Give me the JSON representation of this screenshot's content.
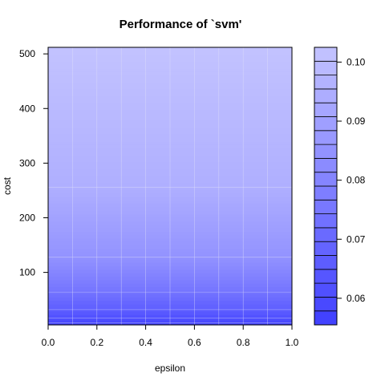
{
  "chart_data": {
    "type": "heatmap",
    "title": "Performance of `svm'",
    "xlabel": "epsilon",
    "ylabel": "cost",
    "xlim": [
      0,
      1
    ],
    "ylim": [
      4,
      512
    ],
    "x_ticks": [
      "0.0",
      "0.2",
      "0.4",
      "0.6",
      "0.8",
      "1.0"
    ],
    "x_tick_values": [
      0,
      0.2,
      0.4,
      0.6,
      0.8,
      1.0
    ],
    "y_ticks": [
      "100",
      "200",
      "300",
      "400",
      "500"
    ],
    "y_tick_values": [
      100,
      200,
      300,
      400,
      500
    ],
    "x_grid": [
      0,
      0.1,
      0.2,
      0.3,
      0.4,
      0.5,
      0.6,
      0.7,
      0.8,
      0.9,
      1.0
    ],
    "y_grid": [
      4,
      8,
      16,
      32,
      64,
      128,
      256,
      512
    ],
    "legend_position": "right",
    "legend_ticks": [
      "0.06",
      "0.07",
      "0.08",
      "0.09",
      "0.10"
    ],
    "legend_tick_values": [
      0.06,
      0.07,
      0.08,
      0.09,
      0.1
    ],
    "z_range": [
      0.0555,
      0.1025
    ],
    "z_by_cost": {
      "cost": [
        4,
        8,
        16,
        32,
        64,
        128,
        256,
        512
      ],
      "error": [
        0.056,
        0.058,
        0.061,
        0.066,
        0.074,
        0.085,
        0.095,
        0.102
      ]
    },
    "colors": {
      "low": "#3f3fff",
      "high": "#c4c4ff",
      "grid": "#e2e2f6",
      "frame": "#000000"
    }
  }
}
